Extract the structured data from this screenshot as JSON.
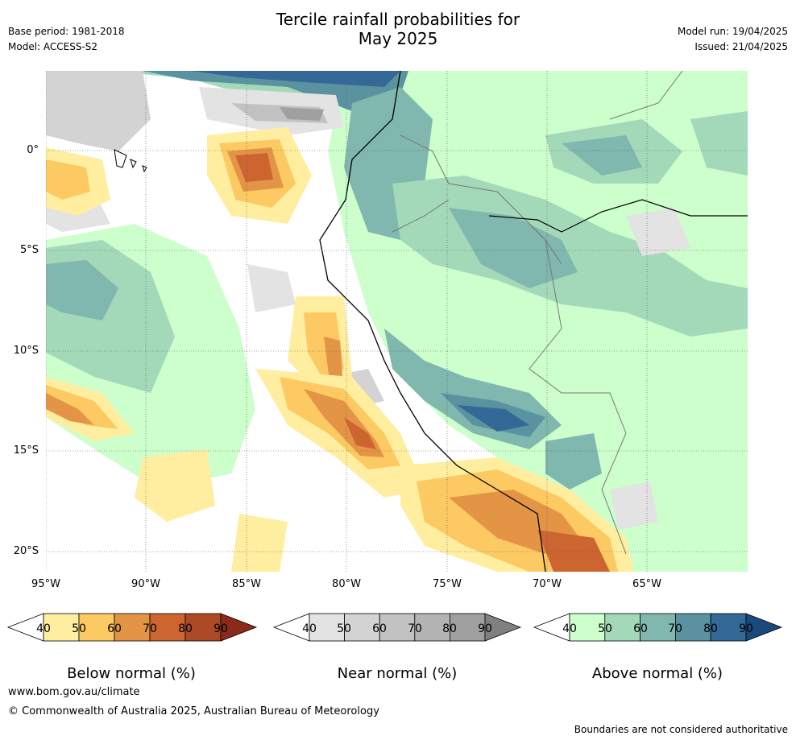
{
  "header": {
    "title_line1": "Tercile rainfall probabilities for",
    "title_line2": "May 2025",
    "base_period": "Base period: 1981-2018",
    "model": "Model: ACCESS-S2",
    "model_run": "Model run: 19/04/2025",
    "issued": "Issued: 21/04/2025"
  },
  "map": {
    "lat_labels": [
      "0°",
      "5°S",
      "10°S",
      "15°S",
      "20°S"
    ],
    "lon_labels": [
      "95°W",
      "90°W",
      "85°W",
      "80°W",
      "75°W",
      "70°W",
      "65°W"
    ],
    "colors": {
      "below": [
        "#ffeea0",
        "#fdc962",
        "#e39444",
        "#cc6530",
        "#ad4a26",
        "#8b2a1a"
      ],
      "near": [
        "#e3e3e3",
        "#d3d3d3",
        "#c2c2c2",
        "#b3b3b3",
        "#a0a0a0",
        "#808080"
      ],
      "above": [
        "#ccffcc",
        "#a3d9b9",
        "#80b7ae",
        "#5a92a0",
        "#346896",
        "#184a7e"
      ]
    }
  },
  "colorbars": {
    "ticks": [
      "40",
      "50",
      "60",
      "70",
      "80",
      "90"
    ],
    "below_title": "Below normal (%)",
    "near_title": "Near normal (%)",
    "above_title": "Above normal (%)"
  },
  "footer": {
    "url": "www.bom.gov.au/climate",
    "copyright": "© Commonwealth of Australia 2025, Australian Bureau of Meteorology",
    "disclaimer": "Boundaries are not considered authoritative"
  }
}
